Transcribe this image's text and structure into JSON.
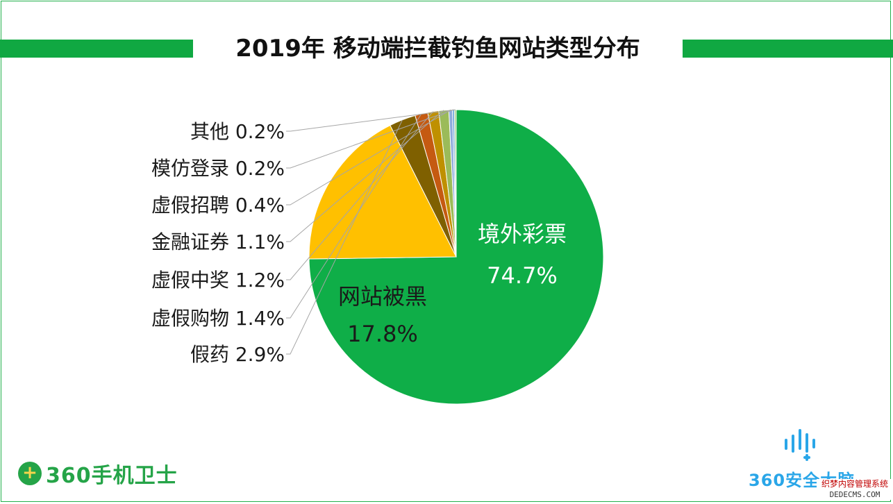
{
  "title": "2019年 移动端拦截钓鱼网站类型分布",
  "logos": {
    "left_mark": "+",
    "left_text": "360手机卫士",
    "right_text": "360安全大脑"
  },
  "watermark": {
    "line1": "织梦内容管理系统",
    "line2": "DEDECMS.COM"
  },
  "colors": {
    "accent": "#10a842",
    "border": "#22b04b",
    "leader_line": "#a6a6a6"
  },
  "chart_data": {
    "type": "pie",
    "title": "2019年 移动端拦截钓鱼网站类型分布",
    "slices": [
      {
        "label": "境外彩票",
        "value": 74.7,
        "value_label": "74.7%",
        "color": "#0fae48",
        "label_position": "inside",
        "text_color": "#ffffff"
      },
      {
        "label": "网站被黑",
        "value": 17.8,
        "value_label": "17.8%",
        "color": "#ffc000",
        "label_position": "inside",
        "text_color": "#1a1a1a"
      },
      {
        "label": "假药",
        "value": 2.9,
        "value_label": "2.9%",
        "color": "#7f6000",
        "label_position": "outside"
      },
      {
        "label": "虚假购物",
        "value": 1.4,
        "value_label": "1.4%",
        "color": "#c55a11",
        "label_position": "outside"
      },
      {
        "label": "虚假中奖",
        "value": 1.2,
        "value_label": "1.2%",
        "color": "#bf9000",
        "label_position": "outside"
      },
      {
        "label": "金融证券",
        "value": 1.1,
        "value_label": "1.1%",
        "color": "#9bbb59",
        "label_position": "outside"
      },
      {
        "label": "虚假招聘",
        "value": 0.4,
        "value_label": "0.4%",
        "color": "#8eaadb",
        "label_position": "outside"
      },
      {
        "label": "模仿登录",
        "value": 0.2,
        "value_label": "0.2%",
        "color": "#5b9bd5",
        "label_position": "outside"
      },
      {
        "label": "其他",
        "value": 0.2,
        "value_label": "0.2%",
        "color": "#a9d18e",
        "label_position": "outside"
      }
    ],
    "start_angle_deg": 0,
    "direction": "clockwise",
    "legend": "none"
  }
}
